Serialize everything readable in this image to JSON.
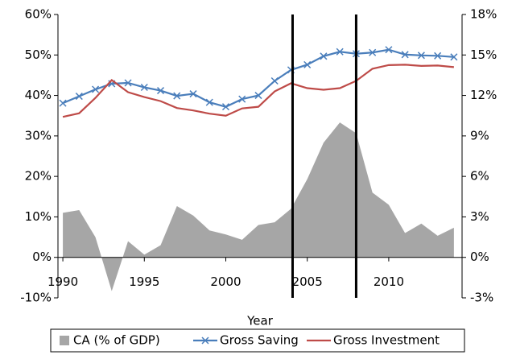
{
  "chart_data": {
    "type": "combo",
    "x": [
      1990,
      1991,
      1992,
      1993,
      1994,
      1995,
      1996,
      1997,
      1998,
      1999,
      2000,
      2001,
      2002,
      2003,
      2004,
      2005,
      2006,
      2007,
      2008,
      2009,
      2010,
      2011,
      2012,
      2013,
      2014
    ],
    "series": [
      {
        "name": "CA (% of GDP)",
        "color": "#a6a6a6",
        "kind": "area",
        "axis": "y2",
        "values": [
          3.3,
          3.5,
          1.5,
          -2.5,
          1.2,
          0.2,
          0.9,
          3.8,
          3.1,
          2.0,
          1.7,
          1.3,
          2.4,
          2.6,
          3.6,
          5.8,
          8.5,
          10.0,
          9.2,
          4.8,
          3.9,
          1.8,
          2.5,
          1.6,
          2.2
        ]
      },
      {
        "name": "Gross Saving",
        "color": "#4a7ebb",
        "kind": "line",
        "marker": "x",
        "values": [
          38.1,
          39.8,
          41.5,
          42.9,
          43.1,
          42.0,
          41.2,
          39.9,
          40.4,
          38.3,
          37.2,
          39.1,
          40.0,
          43.6,
          46.3,
          47.6,
          49.7,
          50.8,
          50.3,
          50.6,
          51.3,
          50.1,
          49.9,
          49.8,
          49.5
        ]
      },
      {
        "name": "Gross Investment",
        "color": "#be4b48",
        "kind": "line",
        "values": [
          34.7,
          35.6,
          39.4,
          43.8,
          40.8,
          39.6,
          38.6,
          36.9,
          36.3,
          35.5,
          35.0,
          36.8,
          37.2,
          41.0,
          43.0,
          41.8,
          41.4,
          41.8,
          43.6,
          46.6,
          47.5,
          47.6,
          47.3,
          47.4,
          47.0
        ]
      }
    ],
    "vlines": [
      2004.1,
      2008.0
    ],
    "x_label": "Year",
    "xlim": [
      1989.7,
      2014.5
    ],
    "xticks": [
      1990,
      1995,
      2000,
      2005,
      2010
    ],
    "ylim": [
      -10,
      60
    ],
    "yticks": [
      {
        "value": -10,
        "label": "-10%"
      },
      {
        "value": 0,
        "label": "0%"
      },
      {
        "value": 10,
        "label": "10%"
      },
      {
        "value": 20,
        "label": "20%"
      },
      {
        "value": 30,
        "label": "30%"
      },
      {
        "value": 40,
        "label": "40%"
      },
      {
        "value": 50,
        "label": "50%"
      },
      {
        "value": 60,
        "label": "60%"
      }
    ],
    "y2lim": [
      -3,
      18
    ],
    "y2ticks": [
      {
        "value": -3,
        "label": "-3%"
      },
      {
        "value": 0,
        "label": "0%"
      },
      {
        "value": 3,
        "label": "3%"
      },
      {
        "value": 6,
        "label": "6%"
      },
      {
        "value": 9,
        "label": "9%"
      },
      {
        "value": 12,
        "label": "12%"
      },
      {
        "value": 15,
        "label": "15%"
      },
      {
        "value": 18,
        "label": "18%"
      }
    ],
    "legend": "bottom"
  }
}
